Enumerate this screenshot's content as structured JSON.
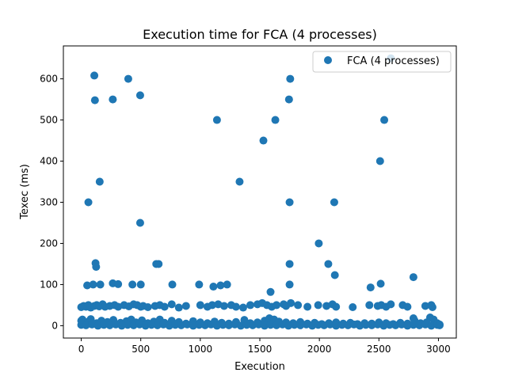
{
  "chart_data": {
    "type": "scatter",
    "title": "Execution time for FCA (4 processes)",
    "xlabel": "Execution",
    "ylabel": "Texec (ms)",
    "xlim": [
      -150,
      3150
    ],
    "ylim": [
      -30,
      680
    ],
    "xticks": [
      0,
      500,
      1000,
      1500,
      2000,
      2500,
      3000
    ],
    "yticks": [
      0,
      100,
      200,
      300,
      400,
      500,
      600
    ],
    "grid": false,
    "legend_position": "top-right",
    "series": [
      {
        "name": "FCA (4 processes)",
        "color": "#1f77b4",
        "points": [
          [
            60,
            300
          ],
          [
            110,
            608
          ],
          [
            115,
            548
          ],
          [
            120,
            152
          ],
          [
            125,
            143
          ],
          [
            155,
            350
          ],
          [
            265,
            550
          ],
          [
            395,
            600
          ],
          [
            495,
            560
          ],
          [
            495,
            250
          ],
          [
            1140,
            500
          ],
          [
            1330,
            350
          ],
          [
            1530,
            450
          ],
          [
            1630,
            500
          ],
          [
            1745,
            550
          ],
          [
            1755,
            600
          ],
          [
            1750,
            300
          ],
          [
            1750,
            150
          ],
          [
            1590,
            82
          ],
          [
            1995,
            200
          ],
          [
            2075,
            150
          ],
          [
            2125,
            300
          ],
          [
            2130,
            123
          ],
          [
            2510,
            400
          ],
          [
            2545,
            500
          ],
          [
            2600,
            650
          ],
          [
            2790,
            118
          ],
          [
            2430,
            93
          ],
          [
            2515,
            102
          ],
          [
            1750,
            100
          ],
          [
            50,
            98
          ],
          [
            100,
            100
          ],
          [
            160,
            100
          ],
          [
            265,
            103
          ],
          [
            310,
            101
          ],
          [
            430,
            100
          ],
          [
            500,
            100
          ],
          [
            630,
            150
          ],
          [
            650,
            150
          ],
          [
            765,
            100
          ],
          [
            990,
            100
          ],
          [
            1110,
            95
          ],
          [
            1170,
            98
          ],
          [
            1225,
            100
          ],
          [
            0,
            45
          ],
          [
            20,
            48
          ],
          [
            40,
            46
          ],
          [
            60,
            50
          ],
          [
            80,
            44
          ],
          [
            110,
            48
          ],
          [
            130,
            50
          ],
          [
            150,
            47
          ],
          [
            180,
            52
          ],
          [
            200,
            46
          ],
          [
            240,
            48
          ],
          [
            280,
            50
          ],
          [
            310,
            46
          ],
          [
            360,
            50
          ],
          [
            400,
            47
          ],
          [
            440,
            52
          ],
          [
            470,
            50
          ],
          [
            500,
            46
          ],
          [
            520,
            48
          ],
          [
            560,
            45
          ],
          [
            620,
            48
          ],
          [
            660,
            50
          ],
          [
            700,
            46
          ],
          [
            760,
            52
          ],
          [
            820,
            44
          ],
          [
            880,
            48
          ],
          [
            1000,
            50
          ],
          [
            1060,
            46
          ],
          [
            1100,
            50
          ],
          [
            1150,
            52
          ],
          [
            1200,
            48
          ],
          [
            1260,
            50
          ],
          [
            1300,
            46
          ],
          [
            1360,
            44
          ],
          [
            1420,
            50
          ],
          [
            1480,
            52
          ],
          [
            1520,
            55
          ],
          [
            1560,
            50
          ],
          [
            1600,
            46
          ],
          [
            1640,
            50
          ],
          [
            1700,
            52
          ],
          [
            1720,
            48
          ],
          [
            1760,
            55
          ],
          [
            1820,
            50
          ],
          [
            1900,
            46
          ],
          [
            1990,
            50
          ],
          [
            2060,
            48
          ],
          [
            2110,
            52
          ],
          [
            2140,
            46
          ],
          [
            2280,
            45
          ],
          [
            2420,
            50
          ],
          [
            2490,
            48
          ],
          [
            2520,
            50
          ],
          [
            2560,
            46
          ],
          [
            2600,
            52
          ],
          [
            2700,
            50
          ],
          [
            2740,
            46
          ],
          [
            2890,
            48
          ],
          [
            2940,
            50
          ],
          [
            2950,
            45
          ],
          [
            0,
            12
          ],
          [
            10,
            15
          ],
          [
            30,
            8
          ],
          [
            60,
            10
          ],
          [
            80,
            16
          ],
          [
            130,
            6
          ],
          [
            170,
            12
          ],
          [
            220,
            9
          ],
          [
            270,
            14
          ],
          [
            330,
            7
          ],
          [
            380,
            11
          ],
          [
            420,
            15
          ],
          [
            460,
            8
          ],
          [
            510,
            13
          ],
          [
            560,
            6
          ],
          [
            610,
            10
          ],
          [
            660,
            15
          ],
          [
            700,
            7
          ],
          [
            760,
            12
          ],
          [
            820,
            9
          ],
          [
            880,
            5
          ],
          [
            940,
            11
          ],
          [
            1000,
            8
          ],
          [
            1060,
            6
          ],
          [
            1120,
            10
          ],
          [
            1180,
            7
          ],
          [
            1240,
            5
          ],
          [
            1300,
            9
          ],
          [
            1370,
            14
          ],
          [
            1420,
            6
          ],
          [
            1480,
            8
          ],
          [
            1540,
            12
          ],
          [
            1580,
            18
          ],
          [
            1620,
            15
          ],
          [
            1660,
            10
          ],
          [
            1720,
            8
          ],
          [
            1780,
            6
          ],
          [
            1840,
            9
          ],
          [
            1900,
            5
          ],
          [
            1960,
            7
          ],
          [
            2020,
            4
          ],
          [
            2080,
            6
          ],
          [
            2140,
            8
          ],
          [
            2200,
            5
          ],
          [
            2260,
            7
          ],
          [
            2320,
            4
          ],
          [
            2380,
            6
          ],
          [
            2440,
            5
          ],
          [
            2500,
            8
          ],
          [
            2560,
            6
          ],
          [
            2620,
            4
          ],
          [
            2680,
            7
          ],
          [
            2740,
            5
          ],
          [
            2790,
            18
          ],
          [
            2800,
            12
          ],
          [
            2850,
            6
          ],
          [
            2900,
            8
          ],
          [
            2930,
            20
          ],
          [
            2960,
            15
          ],
          [
            2990,
            6
          ],
          [
            3010,
            3
          ],
          [
            0,
            2
          ],
          [
            40,
            1
          ],
          [
            90,
            3
          ],
          [
            140,
            0
          ],
          [
            190,
            2
          ],
          [
            240,
            1
          ],
          [
            290,
            3
          ],
          [
            340,
            0
          ],
          [
            390,
            2
          ],
          [
            440,
            1
          ],
          [
            490,
            3
          ],
          [
            540,
            0
          ],
          [
            590,
            2
          ],
          [
            640,
            1
          ],
          [
            690,
            3
          ],
          [
            740,
            0
          ],
          [
            790,
            2
          ],
          [
            840,
            1
          ],
          [
            890,
            3
          ],
          [
            940,
            0
          ],
          [
            990,
            2
          ],
          [
            1040,
            1
          ],
          [
            1090,
            3
          ],
          [
            1140,
            0
          ],
          [
            1190,
            2
          ],
          [
            1240,
            1
          ],
          [
            1290,
            3
          ],
          [
            1340,
            0
          ],
          [
            1390,
            2
          ],
          [
            1440,
            1
          ],
          [
            1490,
            3
          ],
          [
            1540,
            0
          ],
          [
            1590,
            2
          ],
          [
            1640,
            1
          ],
          [
            1690,
            3
          ],
          [
            1740,
            0
          ],
          [
            1790,
            2
          ],
          [
            1840,
            1
          ],
          [
            1890,
            3
          ],
          [
            1940,
            0
          ],
          [
            1990,
            2
          ],
          [
            2040,
            1
          ],
          [
            2090,
            3
          ],
          [
            2140,
            0
          ],
          [
            2190,
            2
          ],
          [
            2240,
            1
          ],
          [
            2290,
            3
          ],
          [
            2340,
            0
          ],
          [
            2390,
            2
          ],
          [
            2440,
            1
          ],
          [
            2490,
            3
          ],
          [
            2540,
            0
          ],
          [
            2590,
            2
          ],
          [
            2640,
            1
          ],
          [
            2690,
            3
          ],
          [
            2740,
            0
          ],
          [
            2790,
            2
          ],
          [
            2840,
            1
          ],
          [
            2890,
            3
          ],
          [
            2940,
            0
          ],
          [
            2990,
            2
          ],
          [
            3010,
            1
          ]
        ]
      }
    ]
  }
}
